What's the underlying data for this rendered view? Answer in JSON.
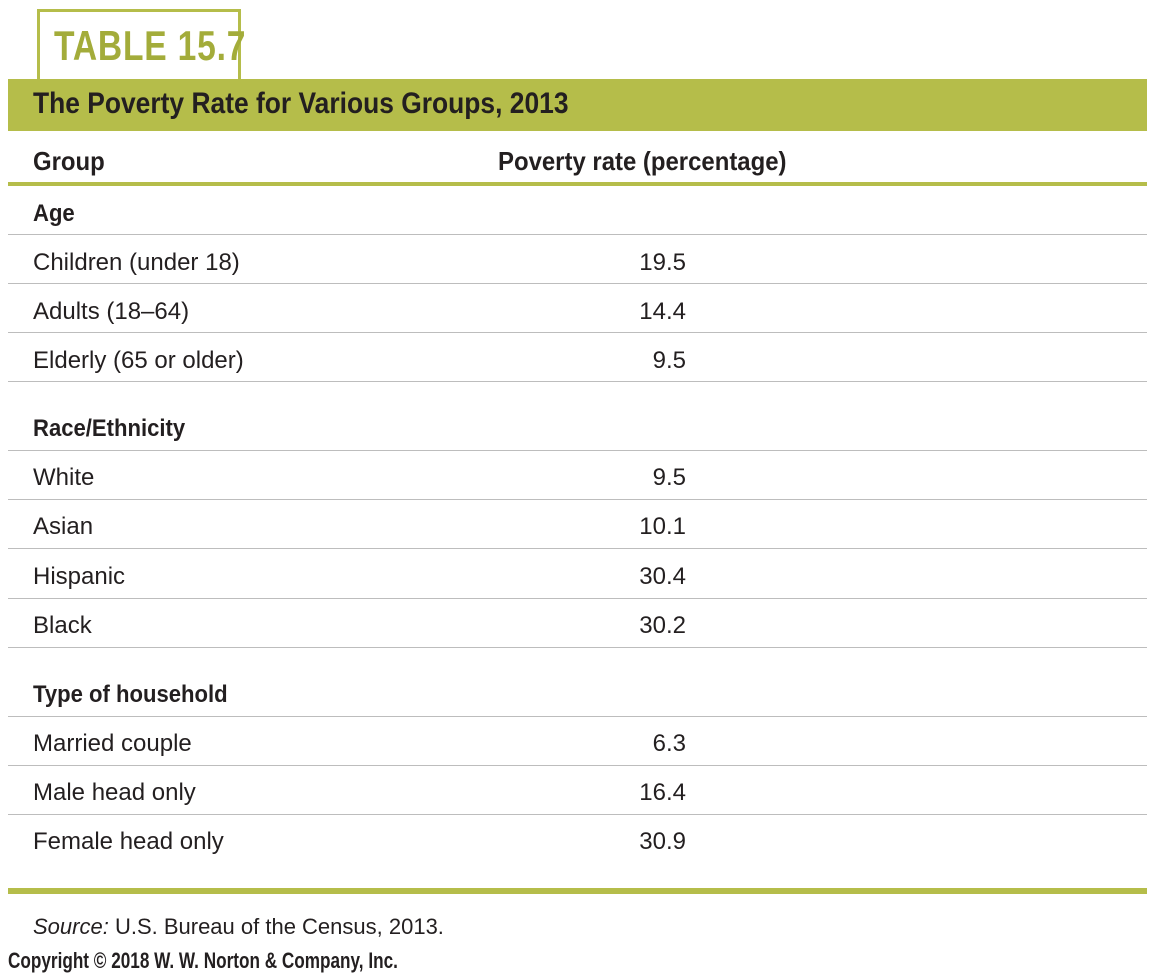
{
  "table_label": "TABLE 15.7",
  "title": "The Poverty Rate for Various Groups, 2013",
  "columns": {
    "group": "Group",
    "rate": "Poverty rate (percentage)"
  },
  "sections": [
    {
      "heading": "Age",
      "rows": [
        {
          "group": "Children (under 18)",
          "rate": "19.5"
        },
        {
          "group": "Adults (18–64)",
          "rate": "14.4"
        },
        {
          "group": "Elderly (65 or older)",
          "rate": "9.5"
        }
      ]
    },
    {
      "heading": "Race/Ethnicity",
      "rows": [
        {
          "group": "White",
          "rate": "9.5"
        },
        {
          "group": "Asian",
          "rate": "10.1"
        },
        {
          "group": "Hispanic",
          "rate": "30.4"
        },
        {
          "group": "Black",
          "rate": "30.2"
        }
      ]
    },
    {
      "heading": "Type of household",
      "rows": [
        {
          "group": "Married couple",
          "rate": "6.3"
        },
        {
          "group": "Male head only",
          "rate": "16.4"
        },
        {
          "group": "Female head only",
          "rate": "30.9"
        }
      ]
    }
  ],
  "source": {
    "prefix": "Source:",
    "text": " U.S. Bureau of the Census, 2013."
  },
  "copyright": "Copyright © 2018 W. W. Norton & Company, Inc.",
  "colors": {
    "accent": "#b5bd4a",
    "label_text": "#a3ac3a",
    "text": "#231f20",
    "rule": "#bdbdbd"
  }
}
